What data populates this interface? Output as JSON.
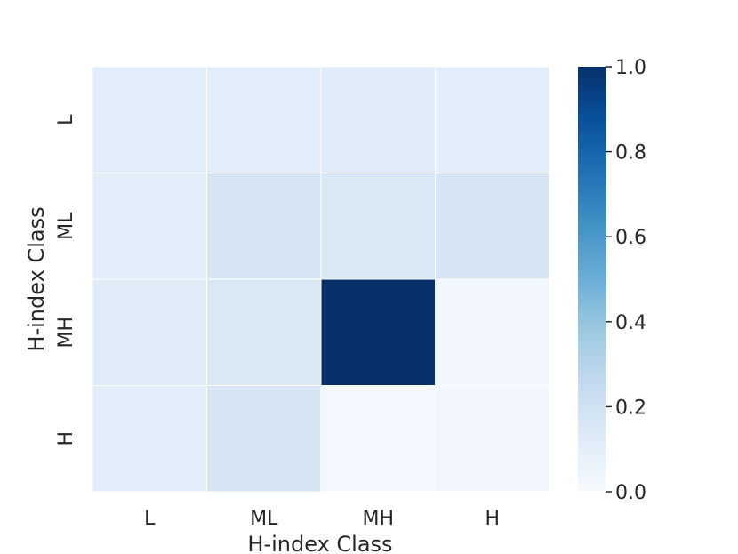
{
  "chart_data": {
    "type": "heatmap",
    "x_categories": [
      "L",
      "ML",
      "MH",
      "H"
    ],
    "y_categories": [
      "L",
      "ML",
      "MH",
      "H"
    ],
    "values": [
      [
        0.11,
        0.11,
        0.12,
        0.11
      ],
      [
        0.11,
        0.17,
        0.15,
        0.17
      ],
      [
        0.12,
        0.15,
        1.0,
        0.03
      ],
      [
        0.11,
        0.17,
        0.02,
        0.03
      ]
    ],
    "xlabel": "H-index Class",
    "ylabel": "H-index Class",
    "colorscale": "Blues",
    "colorbar": {
      "range": [
        0.0,
        1.0
      ],
      "ticks": [
        "0.0",
        "0.2",
        "0.4",
        "0.6",
        "0.8",
        "1.0"
      ],
      "tick_values": [
        0.0,
        0.2,
        0.4,
        0.6,
        0.8,
        1.0
      ],
      "placement": "right"
    }
  }
}
